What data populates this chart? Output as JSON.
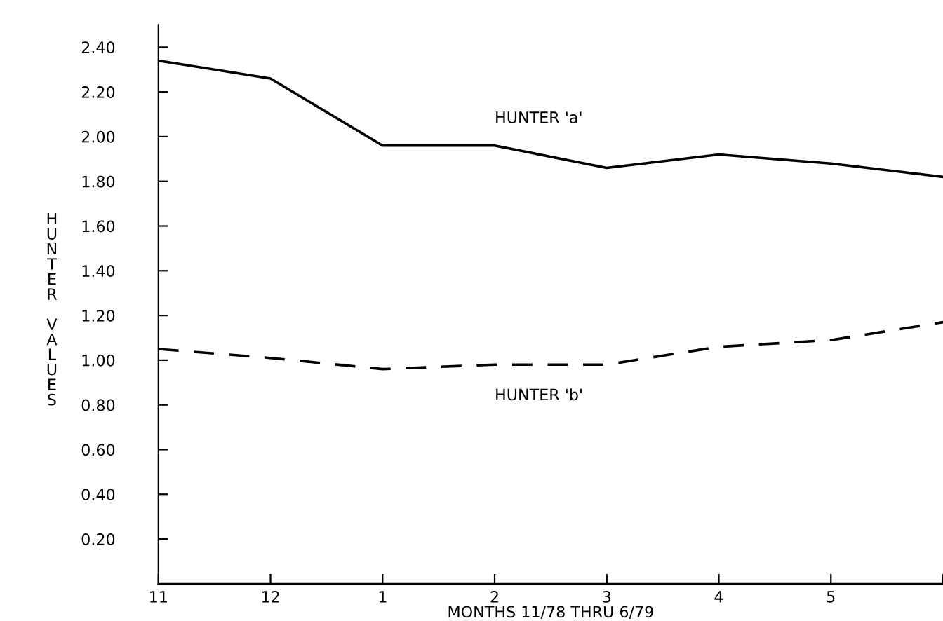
{
  "chart_data": {
    "type": "line",
    "xlabel": "MONTHS 11/78 THRU 6/79",
    "ylabel": "HUNTER VALUES",
    "categories": [
      "11",
      "12",
      "1",
      "2",
      "3",
      "4",
      "5",
      null
    ],
    "series": [
      {
        "name": "HUNTER 'a'",
        "color": "#000000",
        "line_style": "solid",
        "values": [
          2.34,
          2.26,
          1.96,
          1.96,
          1.86,
          1.92,
          1.88,
          1.82
        ]
      },
      {
        "name": "HUNTER 'b'",
        "color": "#000000",
        "line_style": "dashed",
        "values": [
          1.05,
          1.01,
          0.96,
          0.98,
          0.98,
          1.06,
          1.09,
          1.17
        ]
      }
    ],
    "ylim": [
      0,
      2.5
    ],
    "yticks": [
      {
        "value": 0.2,
        "label": "0.20"
      },
      {
        "value": 0.4,
        "label": "0.40"
      },
      {
        "value": 0.6,
        "label": "0.60"
      },
      {
        "value": 0.8,
        "label": "0.80"
      },
      {
        "value": 1.0,
        "label": "1.00"
      },
      {
        "value": 1.2,
        "label": "1.20"
      },
      {
        "value": 1.4,
        "label": "1.40"
      },
      {
        "value": 1.6,
        "label": "1.60"
      },
      {
        "value": 1.8,
        "label": "1.80"
      },
      {
        "value": 2.0,
        "label": "2.00"
      },
      {
        "value": 2.2,
        "label": "2.20"
      },
      {
        "value": 2.4,
        "label": "2.40"
      }
    ],
    "grid": false,
    "legend": false,
    "marker": "none"
  }
}
